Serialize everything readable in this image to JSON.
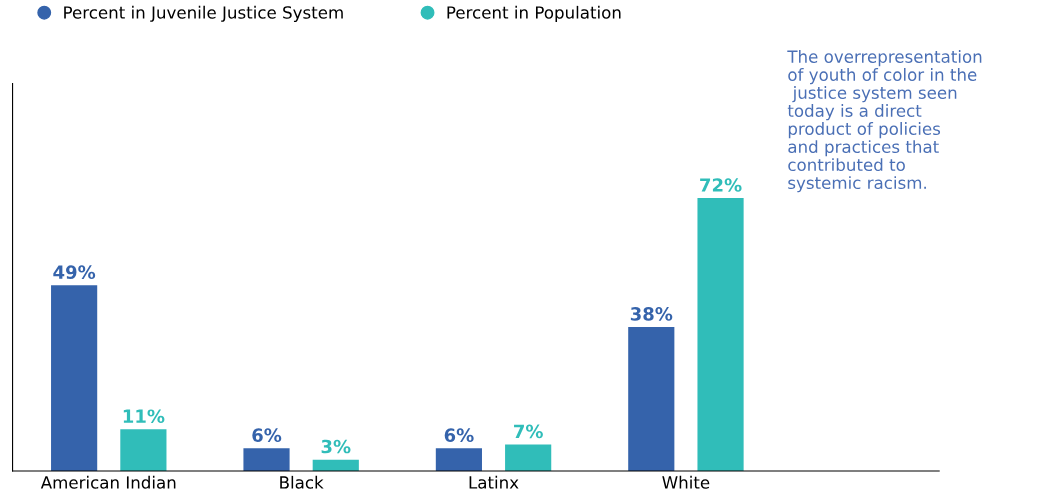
{
  "chart_data": {
    "type": "bar",
    "categories": [
      "American Indian",
      "Black",
      "Latinx",
      "White"
    ],
    "series": [
      {
        "name": "Percent in Juvenile Justice System",
        "color": "#3563ab",
        "values": [
          49,
          6,
          6,
          38
        ],
        "value_labels": [
          "49%",
          "6%",
          "6%",
          "38%"
        ]
      },
      {
        "name": "Percent in Population",
        "color": "#30bdb9",
        "values": [
          11,
          3,
          7,
          72
        ],
        "value_labels": [
          "11%",
          "3%",
          "7%",
          "72%"
        ]
      }
    ],
    "annotations": [
      "The overrepresentation\nof youth of color in the\n justice system seen\ntoday is a direct\nproduct of policies\nand practices that\ncontributed to\nsystemic racism."
    ],
    "tick_labels": "x",
    "grid": false,
    "legend": "top left"
  }
}
